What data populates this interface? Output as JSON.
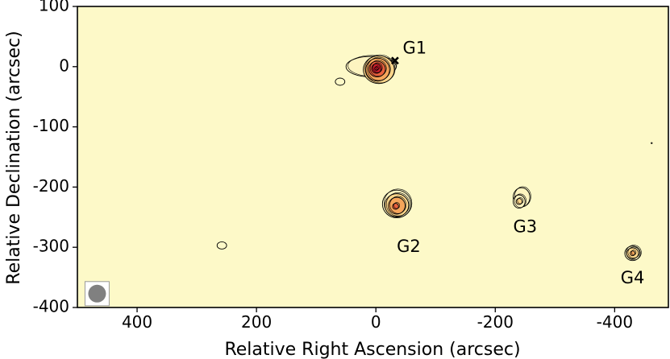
{
  "chart_data": {
    "type": "contour",
    "title": "",
    "xlabel": "Relative Right Ascension (arcsec)",
    "ylabel": "Relative Declination (arcsec)",
    "xlim": [
      500,
      -490
    ],
    "ylim": [
      -400,
      100
    ],
    "x_reversed": true,
    "xticks": [
      400,
      200,
      0,
      -200,
      -400
    ],
    "xtick_labels": [
      "400",
      "200",
      "0",
      "-200",
      "-400"
    ],
    "yticks": [
      100,
      0,
      -100,
      -200,
      -300,
      -400
    ],
    "ytick_labels": [
      "100",
      "0",
      "-100",
      "-200",
      "-300",
      "-400"
    ],
    "grid": false,
    "background_color": "#fdf9c8",
    "colormap": [
      "#fdf4c0",
      "#fbd58a",
      "#f6a55a",
      "#e8603c",
      "#c81d2a"
    ],
    "sources": [
      {
        "name": "G1",
        "x": 0,
        "y": -3,
        "marker": {
          "x": -32,
          "y": 10
        },
        "label_pos": {
          "x": -65,
          "y": 30
        },
        "contours": [
          {
            "rx": 42,
            "ry": 17,
            "dx": 8,
            "dy": 3,
            "fill": "#fdf4c0"
          },
          {
            "rx": 26,
            "ry": 23,
            "dx": -5,
            "dy": -2,
            "fill": "#fbd58a"
          },
          {
            "rx": 20,
            "ry": 19,
            "dx": -3,
            "dy": -2,
            "fill": "#f6a55a"
          },
          {
            "rx": 14,
            "ry": 13,
            "dx": -2,
            "dy": -1,
            "fill": "#e8603c"
          },
          {
            "rx": 8,
            "ry": 8,
            "dx": -1,
            "dy": 0,
            "fill": "#c81d2a"
          },
          {
            "rx": 3,
            "ry": 3,
            "dx": -1,
            "dy": 0,
            "fill": "#c81d2a"
          }
        ]
      },
      {
        "name": "G2",
        "x": -35,
        "y": -230,
        "label_pos": {
          "x": -55,
          "y": -300
        },
        "contours": [
          {
            "rx": 24,
            "ry": 23,
            "dx": 0,
            "dy": 2,
            "fill": "#fdf4c0"
          },
          {
            "rx": 20,
            "ry": 19,
            "dx": 0,
            "dy": 0,
            "fill": "#fbd58a"
          },
          {
            "rx": 14,
            "ry": 14,
            "dx": 0,
            "dy": -1,
            "fill": "#f6a55a"
          },
          {
            "rx": 5,
            "ry": 5,
            "dx": 2,
            "dy": -2,
            "fill": "#e8603c"
          }
        ]
      },
      {
        "name": "G3",
        "x": -240,
        "y": -223,
        "label_pos": {
          "x": -250,
          "y": -267
        },
        "contours": [
          {
            "rx": 14,
            "ry": 16,
            "dx": -4,
            "dy": 6,
            "fill": "#fdf4c0"
          },
          {
            "rx": 10,
            "ry": 11,
            "dx": 0,
            "dy": -1,
            "fill": "#fdf4c0"
          },
          {
            "rx": 5,
            "ry": 5,
            "dx": 0,
            "dy": -1,
            "fill": "#fbd58a"
          }
        ]
      },
      {
        "name": "G4",
        "x": -430,
        "y": -310,
        "label_pos": {
          "x": -430,
          "y": -352
        },
        "contours": [
          {
            "rx": 13,
            "ry": 12,
            "dx": 0,
            "dy": 0,
            "fill": "#fdf4c0"
          },
          {
            "rx": 10,
            "ry": 9,
            "dx": 0,
            "dy": 0,
            "fill": "#fbd58a"
          },
          {
            "rx": 4,
            "ry": 4,
            "dx": 0,
            "dy": 0,
            "fill": "#f6a55a"
          }
        ]
      }
    ],
    "faint_sources": [
      {
        "x": 60,
        "y": -25,
        "rx": 8,
        "ry": 6
      },
      {
        "x": 258,
        "y": -297,
        "rx": 8,
        "ry": 6
      },
      {
        "x": -462,
        "y": -127,
        "rx": 1,
        "ry": 1
      }
    ],
    "beam": {
      "x": 467,
      "y": -377,
      "r": 14,
      "color": "#808080"
    }
  }
}
